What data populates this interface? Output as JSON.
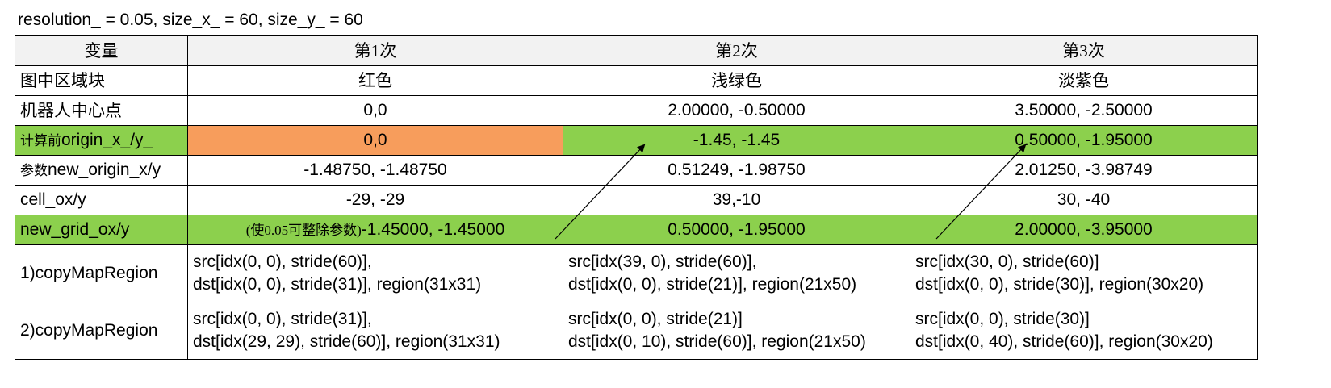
{
  "caption": "resolution_ = 0.05,  size_x_ = 60,  size_y_ = 60",
  "colors": {
    "orange": "#f79d5c",
    "green": "#8cd04d",
    "header_bg": "#f2f2f2",
    "border": "#000000"
  },
  "headers": [
    "变量",
    "第1次",
    "第2次",
    "第3次"
  ],
  "rows": [
    {
      "label": "图中区域块",
      "c1": "红色",
      "c2": "浅绿色",
      "c3": "淡紫色"
    },
    {
      "label": "机器人中心点",
      "c1": "0,0",
      "c2": "2.00000, -0.50000",
      "c3": "3.50000, -2.50000"
    },
    {
      "label_prefix": "计算前",
      "label": "origin_x_/y_",
      "c1": "0,0",
      "c2": "-1.45, -1.45",
      "c3": "0.50000, -1.95000"
    },
    {
      "label_prefix": "参数",
      "label": "new_origin_x/y",
      "c1": "-1.48750, -1.48750",
      "c2": "0.51249, -1.98750",
      "c3": "2.01250, -3.98749"
    },
    {
      "label": "cell_ox/y",
      "c1": "-29, -29",
      "c2": "39,-10",
      "c3": "30, -40"
    },
    {
      "label": "new_grid_ox/y",
      "c1_note": "(使0.05可整除参数)",
      "c1": "-1.45000, -1.45000",
      "c2": "0.50000, -1.95000",
      "c3": "2.00000, -3.95000"
    },
    {
      "label": "1)copyMapRegion",
      "c1": [
        "src[idx(0, 0), stride(60)],",
        "dst[idx(0, 0), stride(31)], region(31x31)"
      ],
      "c2": [
        "src[idx(39, 0), stride(60)],",
        "dst[idx(0, 0), stride(21)], region(21x50)"
      ],
      "c3": [
        "src[idx(30, 0), stride(60)]",
        "dst[idx(0, 0), stride(30)], region(30x20)"
      ]
    },
    {
      "label": "2)copyMapRegion",
      "c1": [
        "src[idx(0, 0), stride(31)],",
        "dst[idx(29, 29), stride(60)], region(31x31)"
      ],
      "c2": [
        "src[idx(0, 0), stride(21)]",
        "dst[idx(0, 10), stride(60)], region(21x50)"
      ],
      "c3": [
        "src[idx(0, 0), stride(30)]",
        "dst[idx(0, 40), stride(60)], region(30x20)"
      ]
    }
  ]
}
